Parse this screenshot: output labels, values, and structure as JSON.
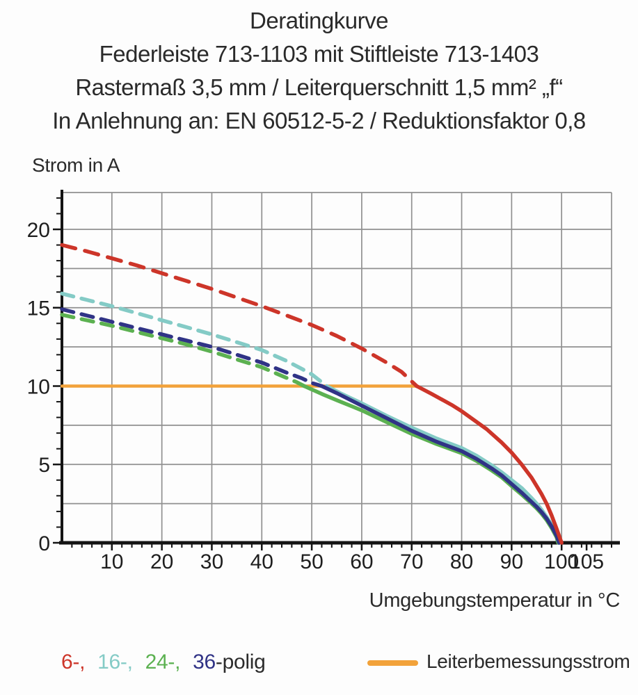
{
  "title": {
    "line1": "Deratingkurve",
    "line2": "Federleiste 713-1103 mit Stiftleiste 713-1403",
    "line3": "Rastermaß 3,5 mm / Leiterquerschnitt 1,5 mm² „f“",
    "line4": "In Anlehnung an: EN 60512-5-2 / Reduktionsfaktor 0,8"
  },
  "legend": {
    "poles": [
      {
        "label": "6-,",
        "color": "#cd3529"
      },
      {
        "label": "16-,",
        "color": "#84cbc6"
      },
      {
        "label": "24-,",
        "color": "#5cb151"
      },
      {
        "label": "36",
        "color": "#303386"
      }
    ],
    "poles_suffix": "-polig",
    "rated_label": "Leiterbemessungsstrom",
    "rated_color": "#f2a23a"
  },
  "chart_data": {
    "type": "line",
    "title": "Deratingkurve Federleiste 713-1103 mit Stiftleiste 713-1403",
    "xlabel": "Umgebungstemperatur in °C",
    "ylabel": "Strom in A",
    "xlim": [
      0,
      110
    ],
    "ylim": [
      0,
      22.35
    ],
    "x_major_ticks": [
      10,
      20,
      30,
      40,
      50,
      60,
      70,
      80,
      90,
      100,
      105
    ],
    "x_grid_step": 10,
    "x_minor_step": 2,
    "y_major_ticks": [
      0,
      5,
      10,
      15,
      20
    ],
    "y_grid_step": 2.5,
    "y_minor_step": 1,
    "grid_color": "#909090",
    "axis_color": "#141414",
    "series": [
      {
        "name": "Leiterbemessungsstrom",
        "color": "#f2a23a",
        "width": 4.5,
        "solid": [
          [
            0,
            10
          ],
          [
            71,
            10
          ]
        ]
      },
      {
        "name": "24-polig",
        "color": "#5cb151",
        "width": 5.5,
        "dash": [
          17,
          12
        ],
        "dashed": [
          [
            0,
            14.55
          ],
          [
            5,
            14.2
          ],
          [
            10,
            13.85
          ],
          [
            15,
            13.45
          ],
          [
            20,
            13.05
          ],
          [
            25,
            12.65
          ],
          [
            30,
            12.2
          ],
          [
            35,
            11.7
          ],
          [
            40,
            11.2
          ],
          [
            44,
            10.65
          ],
          [
            47,
            10.25
          ],
          [
            48.5,
            10
          ]
        ],
        "solid": [
          [
            48.5,
            10
          ],
          [
            52,
            9.5
          ],
          [
            55,
            9.1
          ],
          [
            60,
            8.45
          ],
          [
            65,
            7.7
          ],
          [
            70,
            6.95
          ],
          [
            75,
            6.3
          ],
          [
            80,
            5.72
          ],
          [
            83,
            5.22
          ],
          [
            86,
            4.62
          ],
          [
            88,
            4.18
          ],
          [
            90,
            3.62
          ],
          [
            92,
            3.08
          ],
          [
            94,
            2.5
          ],
          [
            95,
            2.2
          ],
          [
            96,
            1.85
          ],
          [
            97,
            1.45
          ],
          [
            98,
            0.95
          ],
          [
            99,
            0.35
          ],
          [
            99.3,
            0
          ]
        ]
      },
      {
        "name": "16-polig",
        "color": "#84cbc6",
        "width": 5.5,
        "dash": [
          17,
          12
        ],
        "dashed": [
          [
            0,
            15.9
          ],
          [
            5,
            15.5
          ],
          [
            10,
            15.1
          ],
          [
            15,
            14.65
          ],
          [
            20,
            14.2
          ],
          [
            25,
            13.75
          ],
          [
            30,
            13.3
          ],
          [
            35,
            12.8
          ],
          [
            40,
            12.3
          ],
          [
            45,
            11.6
          ],
          [
            48,
            11.1
          ],
          [
            50,
            10.75
          ],
          [
            53,
            10
          ]
        ],
        "solid": [
          [
            53,
            10
          ],
          [
            56,
            9.5
          ],
          [
            60,
            8.9
          ],
          [
            65,
            8.1
          ],
          [
            70,
            7.35
          ],
          [
            75,
            6.65
          ],
          [
            80,
            6.05
          ],
          [
            83,
            5.55
          ],
          [
            86,
            4.95
          ],
          [
            88,
            4.5
          ],
          [
            90,
            4.0
          ],
          [
            92,
            3.5
          ],
          [
            94,
            2.85
          ],
          [
            95,
            2.5
          ],
          [
            96,
            2.1
          ],
          [
            97,
            1.65
          ],
          [
            98,
            1.15
          ],
          [
            99,
            0.5
          ],
          [
            99.7,
            0
          ]
        ]
      },
      {
        "name": "36-polig",
        "color": "#303386",
        "width": 5.5,
        "dash": [
          17,
          12
        ],
        "dashed": [
          [
            0,
            14.9
          ],
          [
            5,
            14.5
          ],
          [
            10,
            14.1
          ],
          [
            15,
            13.7
          ],
          [
            20,
            13.3
          ],
          [
            25,
            12.9
          ],
          [
            30,
            12.5
          ],
          [
            35,
            12.0
          ],
          [
            40,
            11.5
          ],
          [
            45,
            10.85
          ],
          [
            48,
            10.5
          ],
          [
            50,
            10.2
          ],
          [
            52,
            10
          ]
        ],
        "solid": [
          [
            52,
            10
          ],
          [
            55,
            9.55
          ],
          [
            60,
            8.75
          ],
          [
            65,
            7.95
          ],
          [
            70,
            7.15
          ],
          [
            75,
            6.45
          ],
          [
            80,
            5.85
          ],
          [
            83,
            5.35
          ],
          [
            86,
            4.75
          ],
          [
            88,
            4.3
          ],
          [
            90,
            3.75
          ],
          [
            92,
            3.2
          ],
          [
            94,
            2.6
          ],
          [
            95,
            2.3
          ],
          [
            96,
            1.95
          ],
          [
            97,
            1.55
          ],
          [
            98,
            1.05
          ],
          [
            99,
            0.45
          ],
          [
            99.5,
            0
          ]
        ]
      },
      {
        "name": "6-polig",
        "color": "#cd3529",
        "width": 5.5,
        "dash": [
          20,
          14
        ],
        "dashed": [
          [
            0,
            19
          ],
          [
            5,
            18.6
          ],
          [
            10,
            18.15
          ],
          [
            15,
            17.7
          ],
          [
            20,
            17.2
          ],
          [
            25,
            16.7
          ],
          [
            30,
            16.2
          ],
          [
            35,
            15.65
          ],
          [
            40,
            15.1
          ],
          [
            45,
            14.5
          ],
          [
            50,
            13.9
          ],
          [
            55,
            13.2
          ],
          [
            60,
            12.4
          ],
          [
            65,
            11.5
          ],
          [
            68,
            10.9
          ],
          [
            71,
            10
          ]
        ],
        "solid": [
          [
            71,
            10
          ],
          [
            74,
            9.5
          ],
          [
            78,
            8.8
          ],
          [
            80,
            8.4
          ],
          [
            85,
            7.25
          ],
          [
            88,
            6.4
          ],
          [
            90,
            5.75
          ],
          [
            92,
            5.0
          ],
          [
            94,
            4.15
          ],
          [
            96,
            3.1
          ],
          [
            97,
            2.5
          ],
          [
            98,
            1.75
          ],
          [
            99,
            0.9
          ],
          [
            100,
            0
          ]
        ]
      }
    ]
  }
}
